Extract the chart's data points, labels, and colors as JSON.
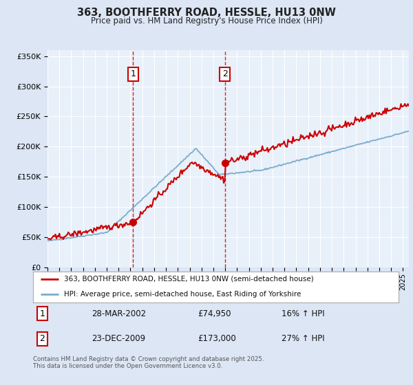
{
  "title": "363, BOOTHFERRY ROAD, HESSLE, HU13 0NW",
  "subtitle": "Price paid vs. HM Land Registry's House Price Index (HPI)",
  "ylim": [
    0,
    360000
  ],
  "yticks": [
    0,
    50000,
    100000,
    150000,
    200000,
    250000,
    300000,
    350000
  ],
  "ytick_labels": [
    "£0",
    "£50K",
    "£100K",
    "£150K",
    "£200K",
    "£250K",
    "£300K",
    "£350K"
  ],
  "background_color": "#dce6f5",
  "plot_background": "#e8f0fa",
  "legend_entry1": "363, BOOTHFERRY ROAD, HESSLE, HU13 0NW (semi-detached house)",
  "legend_entry2": "HPI: Average price, semi-detached house, East Riding of Yorkshire",
  "purchase1": {
    "date_label": "28-MAR-2002",
    "price": 74950,
    "x": 2002.23,
    "pct": "16%"
  },
  "purchase2": {
    "date_label": "23-DEC-2009",
    "price": 173000,
    "x": 2009.98,
    "pct": "27%"
  },
  "footer": "Contains HM Land Registry data © Crown copyright and database right 2025.\nThis data is licensed under the Open Government Licence v3.0.",
  "line_color_red": "#cc0000",
  "line_color_blue": "#7aaccc",
  "vline_color": "#cc0000",
  "xlim_left": 1995,
  "xlim_right": 2025.5,
  "marker1_y": 320000,
  "marker2_y": 320000
}
